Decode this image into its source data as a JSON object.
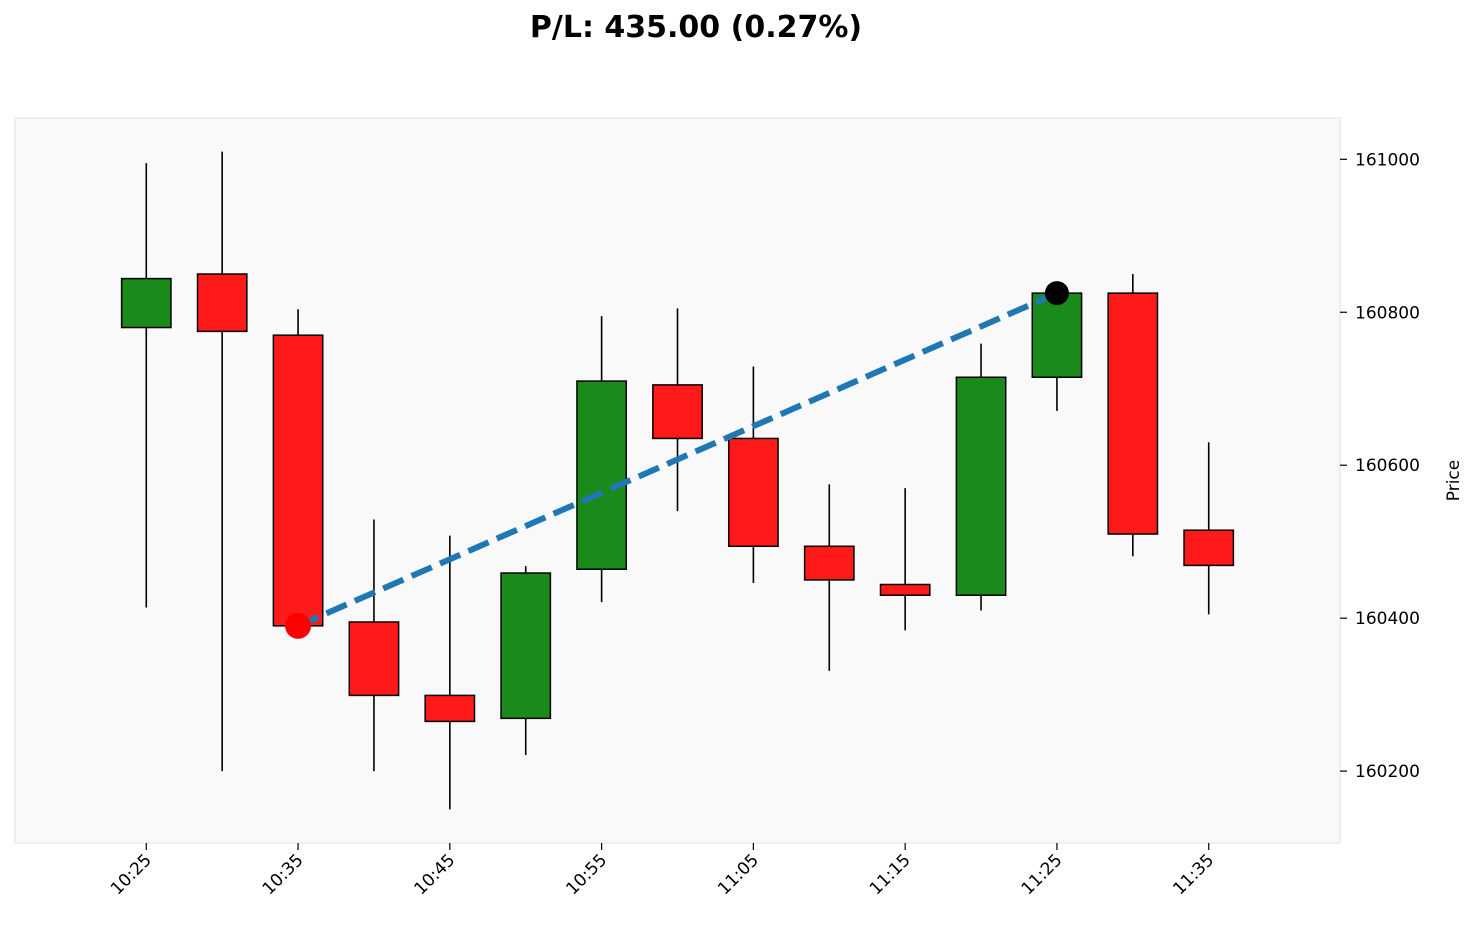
{
  "chart_data": {
    "type": "candlestick",
    "title": "P/L: 435.00 (0.27%)",
    "xlabel": "",
    "ylabel": "Price",
    "xlim": [
      "10:16:21",
      "11:43:39"
    ],
    "ylim": [
      160106,
      161054
    ],
    "grid": false,
    "y_axis_side": "right",
    "x_ticks": [
      "10:25",
      "10:35",
      "10:45",
      "10:55",
      "11:05",
      "11:15",
      "11:25",
      "11:35"
    ],
    "y_ticks": [
      160200,
      160400,
      160600,
      160800,
      161000
    ],
    "colors": {
      "up": "#1a8a1a",
      "down": "#ff1a1a",
      "trade_line": "#1f77b4",
      "entry_marker": "#ff0000",
      "exit_marker": "#000000",
      "background": "#f9f9f9"
    },
    "candles": [
      {
        "time": "10:25",
        "open": 160780,
        "high": 160995,
        "low": 160414,
        "close": 160844
      },
      {
        "time": "10:30",
        "open": 160850,
        "high": 161010,
        "low": 160200,
        "close": 160775
      },
      {
        "time": "10:35",
        "open": 160770,
        "high": 160804,
        "low": 160380,
        "close": 160390
      },
      {
        "time": "10:40",
        "open": 160395,
        "high": 160529,
        "low": 160200,
        "close": 160299
      },
      {
        "time": "10:45",
        "open": 160299,
        "high": 160508,
        "low": 160150,
        "close": 160265
      },
      {
        "time": "10:50",
        "open": 160269,
        "high": 160468,
        "low": 160221,
        "close": 160459
      },
      {
        "time": "10:55",
        "open": 160464,
        "high": 160795,
        "low": 160421,
        "close": 160710
      },
      {
        "time": "11:00",
        "open": 160705,
        "high": 160805,
        "low": 160540,
        "close": 160635
      },
      {
        "time": "11:05",
        "open": 160635,
        "high": 160729,
        "low": 160446,
        "close": 160494
      },
      {
        "time": "11:10",
        "open": 160494,
        "high": 160575,
        "low": 160331,
        "close": 160450
      },
      {
        "time": "11:15",
        "open": 160444,
        "high": 160570,
        "low": 160384,
        "close": 160430
      },
      {
        "time": "11:20",
        "open": 160430,
        "high": 160759,
        "low": 160410,
        "close": 160715
      },
      {
        "time": "11:25",
        "open": 160715,
        "high": 160825,
        "low": 160671,
        "close": 160825
      },
      {
        "time": "11:30",
        "open": 160825,
        "high": 160850,
        "low": 160481,
        "close": 160510
      },
      {
        "time": "11:35",
        "open": 160515,
        "high": 160630,
        "low": 160405,
        "close": 160469
      }
    ],
    "trade": {
      "entry": {
        "time": "10:35",
        "price": 160390
      },
      "exit": {
        "time": "11:25",
        "price": 160825
      },
      "pl": 435.0,
      "pl_pct": 0.27
    }
  }
}
